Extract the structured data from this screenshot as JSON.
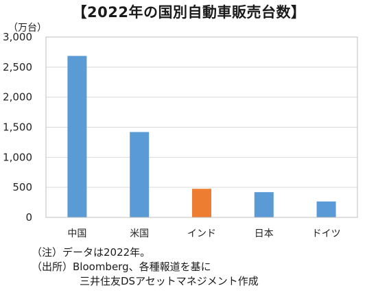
{
  "title": "【2022年の国別自動車販売台数】",
  "unit_label": "（万台）",
  "chart_data": {
    "type": "bar",
    "categories": [
      "中国",
      "米国",
      "インド",
      "日本",
      "ドイツ"
    ],
    "values": [
      2686,
      1420,
      476,
      420,
      265
    ],
    "ylim": [
      0,
      3000
    ],
    "yticks": [
      0,
      500,
      1000,
      1500,
      2000,
      2500,
      3000
    ],
    "ytick_labels": [
      "0",
      "500",
      "1,000",
      "1,500",
      "2,000",
      "2,500",
      "3,000"
    ],
    "colors": [
      "#5b9bd5",
      "#5b9bd5",
      "#ed7d31",
      "#5b9bd5",
      "#5b9bd5"
    ],
    "grid": true,
    "legend": "none"
  },
  "notes": {
    "line1": "（注）データは2022年。",
    "line2": "（出所）Bloomberg、各種報道を基に",
    "line3": "三井住友DSアセットマネジメント作成"
  }
}
